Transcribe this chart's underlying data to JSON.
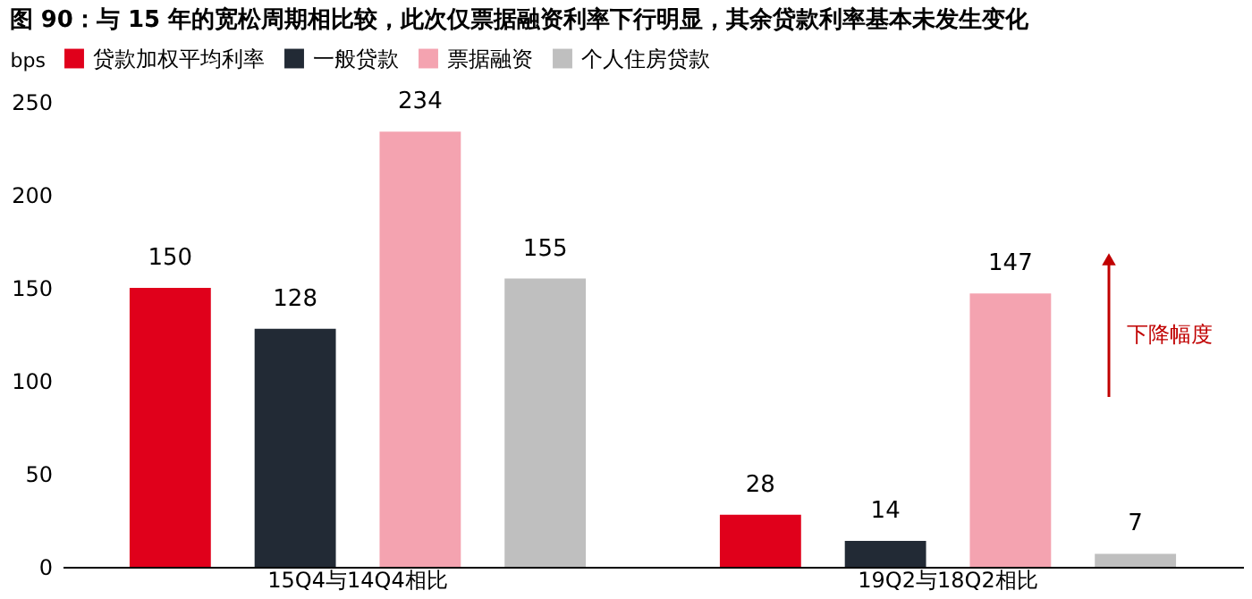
{
  "chart_data": {
    "type": "bar",
    "title": "图 90：与 15 年的宽松周期相比较，此次仅票据融资利率下行明显，其余贷款利率基本未发生变化",
    "categories": [
      "15Q4与14Q4相比",
      "19Q2与18Q2相比"
    ],
    "series": [
      {
        "name": "贷款加权平均利率",
        "color": "#e0001b",
        "values": [
          150,
          28
        ]
      },
      {
        "name": "一般贷款",
        "color": "#222a35",
        "values": [
          128,
          14
        ]
      },
      {
        "name": "票据融资",
        "color": "#f4a3b0",
        "values": [
          234,
          147
        ]
      },
      {
        "name": "个人住房贷款",
        "color": "#bfbfbf",
        "values": [
          155,
          7
        ]
      }
    ],
    "ylabel": "bps",
    "ylim": [
      0,
      250
    ],
    "yticks": [
      0,
      50,
      100,
      150,
      200,
      250
    ],
    "data_labels": true,
    "legend": "top",
    "grid": false,
    "annotations": [
      "下降幅度"
    ]
  }
}
